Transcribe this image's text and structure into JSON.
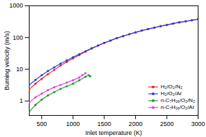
{
  "chart_data": {
    "type": "line",
    "x_label": "Inlet temperature (K)",
    "y_label": "Burning velocity (m/s)",
    "log": "y",
    "legend": "lower right",
    "marker": "circle",
    "line_style": "solid",
    "xlim": [
      300,
      3000
    ],
    "xticks": [
      500,
      1000,
      1500,
      2000,
      2500,
      3000
    ],
    "ylim": [
      0.35,
      1000
    ],
    "yticks": [
      1,
      10,
      100,
      1000
    ],
    "series": [
      {
        "name": "H₂/O₂/N₂",
        "color": "#e8262a",
        "x": [
          300,
          400,
          500,
          600,
          700,
          800,
          900,
          1000,
          1100,
          1200,
          1300,
          1400,
          1500,
          1600,
          1700,
          1800,
          1900,
          2000,
          2100,
          2200,
          2300,
          2400,
          2500,
          2600,
          2700,
          2800,
          2900,
          3000
        ],
        "values": [
          2.3,
          3.5,
          5,
          7,
          9.5,
          13,
          17,
          22,
          28,
          36,
          45,
          55,
          67,
          80,
          95,
          110,
          127,
          145,
          165,
          185,
          205,
          228,
          250,
          275,
          300,
          325,
          350,
          378
        ]
      },
      {
        "name": "H₂/O₂/Ar",
        "color": "#2a3fd6",
        "x": [
          300,
          400,
          500,
          600,
          700,
          800,
          900,
          1000,
          1100,
          1200,
          1300,
          1400,
          1500,
          1600,
          1700,
          1800,
          1900,
          2000,
          2100,
          2200,
          2300,
          2400,
          2500,
          2600,
          2700,
          2800,
          2900,
          3000
        ],
        "values": [
          3.2,
          4.6,
          6.5,
          8.8,
          11.5,
          15,
          19,
          24,
          30,
          37,
          46,
          56,
          68,
          81,
          96,
          111,
          128,
          146,
          166,
          186,
          206,
          229,
          251,
          276,
          301,
          326,
          351,
          379
        ]
      },
      {
        "name": "n-C₇H₁₆/O₂/N₂",
        "color": "#1a9a2a",
        "x": [
          300,
          400,
          500,
          600,
          700,
          800,
          900,
          1000,
          1100,
          1200,
          1250,
          1275
        ],
        "values": [
          0.45,
          0.75,
          1.1,
          1.5,
          1.9,
          2.4,
          2.9,
          3.5,
          4.5,
          5.8,
          6.5,
          6
        ]
      },
      {
        "name": "n-C₇H₁₆/O₂/Ar",
        "color": "#e040e0",
        "x": [
          300,
          400,
          500,
          600,
          700,
          800,
          900,
          1000,
          1100,
          1150,
          1200
        ],
        "values": [
          0.9,
          1.3,
          1.7,
          2.2,
          2.7,
          3.2,
          3.8,
          4.5,
          5.5,
          6.5,
          7.5
        ]
      }
    ]
  }
}
